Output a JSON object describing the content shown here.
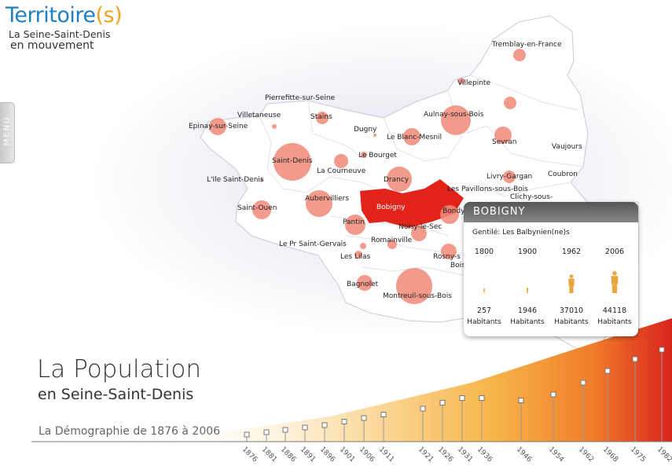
{
  "logo": {
    "title_main": "Territoire",
    "title_suffix": "(s)",
    "line1": "La Seine-Saint-Denis",
    "line2": "en mouvement"
  },
  "menu": {
    "label": "MENU"
  },
  "map": {
    "communes": [
      "Tremblay-en-France",
      "Villepinte",
      "Pierrefitte-sur-Seine",
      "Villetaneuse",
      "Stains",
      "Dugny",
      "Aulnay-sous-Bois",
      "Epinay-sur-Seine",
      "Le Blanc-Mesnil",
      "Sevran",
      "Vaujours",
      "Le Bourget",
      "Saint-Denis",
      "L'Ile Saint-Denis",
      "La Courneuve",
      "Drancy",
      "Livry-Gargan",
      "Coubron",
      "Les Pavillons-sous-Bois",
      "Clichy-sous-",
      "Aubervilliers",
      "Saint-Ouen",
      "Bobigny",
      "Bondy",
      "Pantin",
      "Noisy-le-Sec",
      "Le Pr Saint-Gervais",
      "Romainville",
      "Les Lilas",
      "Rosny-s",
      "Bois",
      "Bagnolet",
      "Montreuil-sous-Bois"
    ],
    "selected": "Bobigny",
    "selected_color": "#e2231a",
    "bubble_color": "#f08a7a"
  },
  "heading": {
    "title": "La Population",
    "subtitle": "en Seine-Saint-Denis",
    "range": "La Démographie de 1876 à 2006"
  },
  "timeline": {
    "years": [
      "1876",
      "1881",
      "1886",
      "1891",
      "1896",
      "1901",
      "1906",
      "1911",
      "1921",
      "1926",
      "1931",
      "1936",
      "1946",
      "1954",
      "1962",
      "1968",
      "1975",
      "1982"
    ],
    "levels": [
      0.06,
      0.08,
      0.1,
      0.12,
      0.14,
      0.17,
      0.2,
      0.23,
      0.28,
      0.33,
      0.37,
      0.37,
      0.35,
      0.4,
      0.5,
      0.6,
      0.7,
      0.78
    ]
  },
  "popup": {
    "commune": "BOBIGNY",
    "gentile": "Gentilé: Les Balbynien(ne)s",
    "columns": [
      {
        "year": "1800",
        "population": "257",
        "unit": "Habitants"
      },
      {
        "year": "1900",
        "population": "1946",
        "unit": "Habitants"
      },
      {
        "year": "1962",
        "population": "37010",
        "unit": "Habitants"
      },
      {
        "year": "2006",
        "population": "44118",
        "unit": "Habitants"
      }
    ],
    "figure_scale": [
      0.2,
      0.25,
      0.85,
      1.0
    ],
    "figure_color": "#e9a640"
  },
  "colors": {
    "accent_blue": "#1f7fc0",
    "accent_orange": "#f0a21f"
  }
}
